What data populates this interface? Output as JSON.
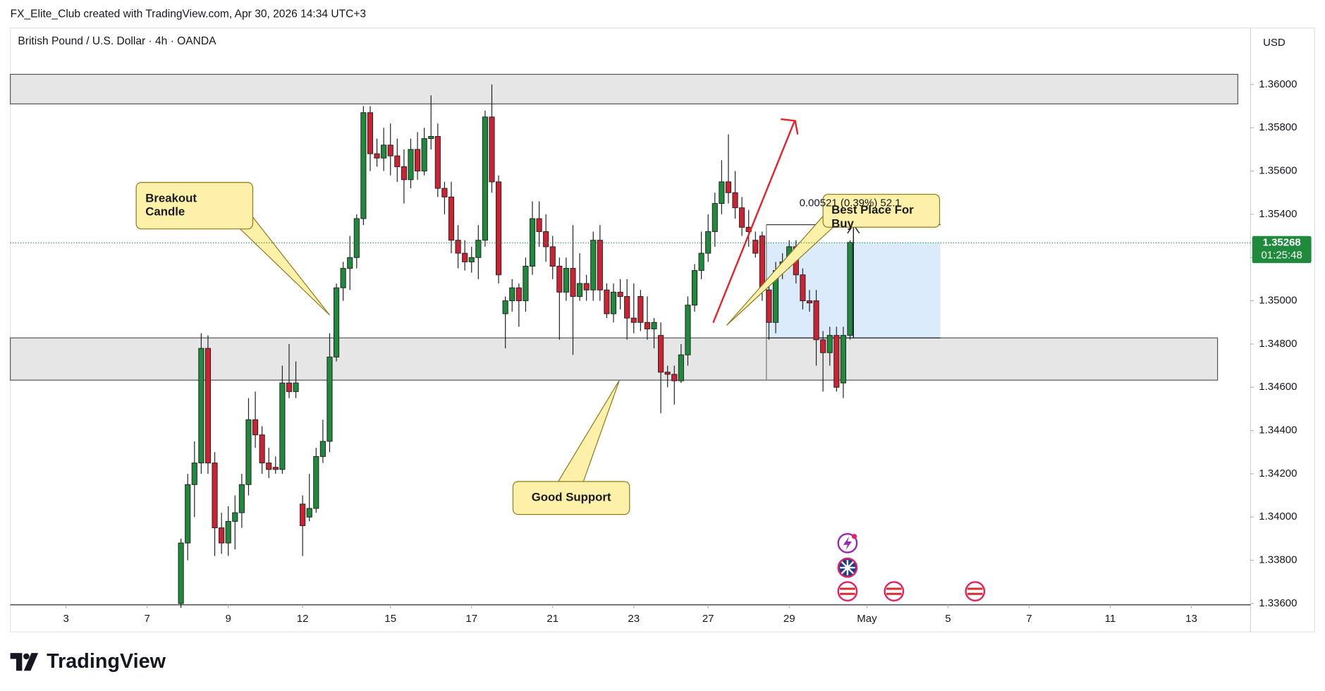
{
  "header": "FX_Elite_Club created with TradingView.com, Apr 30, 2026 14:34 UTC+3",
  "branding": "TradingView",
  "chart_data": {
    "type": "candlestick",
    "title": "British Pound / U.S. Dollar · 4h · OANDA",
    "currency": "USD",
    "up_color": "#1f8a3c",
    "down_color": "#cc2233",
    "grid": false,
    "x": [
      0,
      1,
      2,
      3,
      4,
      5,
      6,
      7,
      8,
      9,
      10,
      11,
      12,
      13,
      14,
      15,
      16,
      17,
      18,
      19,
      20,
      21,
      22,
      23,
      24,
      25,
      26,
      27,
      28,
      29,
      30,
      31,
      32,
      33,
      34,
      35,
      36,
      37,
      38,
      39,
      40,
      41,
      42,
      43,
      44,
      45,
      46,
      47,
      48,
      49,
      50,
      51,
      52,
      53,
      54,
      55,
      56,
      57,
      58,
      59,
      60,
      61,
      62,
      63,
      64,
      65,
      66,
      67,
      68,
      69,
      70,
      71,
      72,
      73,
      74,
      75,
      76,
      77,
      78,
      79,
      80,
      81,
      82,
      83,
      84,
      85,
      86,
      87,
      88,
      89,
      90,
      91,
      92,
      93,
      94,
      95,
      96,
      97,
      98,
      99
    ],
    "open": [
      1.336,
      1.3388,
      1.3415,
      1.3425,
      1.3478,
      1.3425,
      1.3395,
      1.3388,
      1.3398,
      1.3402,
      1.3415,
      1.3445,
      1.3438,
      1.3425,
      1.3423,
      1.3422,
      1.3462,
      1.3458,
      1.3406,
      1.34,
      1.3404,
      1.3428,
      1.3435,
      1.3474,
      1.3506,
      1.3515,
      1.352,
      1.3538,
      1.3587,
      1.3568,
      1.3566,
      1.3572,
      1.3567,
      1.3562,
      1.3556,
      1.357,
      1.356,
      1.3575,
      1.3576,
      1.3552,
      1.3548,
      1.3528,
      1.3522,
      1.3518,
      1.352,
      1.3528,
      1.3585,
      1.3555,
      1.3494,
      1.35,
      1.3506,
      1.35,
      1.3516,
      1.3538,
      1.3532,
      1.3525,
      1.3516,
      1.3504,
      1.3515,
      1.3502,
      1.3508,
      1.3505,
      1.3528,
      1.3505,
      1.3494,
      1.3504,
      1.3502,
      1.3492,
      1.3502,
      1.349,
      1.3487,
      1.3484,
      1.3467,
      1.3466,
      1.3463,
      1.3475,
      1.3498,
      1.3514,
      1.3522,
      1.3532,
      1.3545,
      1.3555,
      1.355,
      1.3543,
      1.3534,
      1.3528,
      1.353,
      1.3505,
      1.349,
      1.3514,
      1.3518,
      1.3525,
      1.3512,
      1.35,
      1.35,
      1.3482,
      1.3476,
      1.3484,
      1.3462,
      1.3484
    ],
    "high": [
      1.339,
      1.342,
      1.3435,
      1.3485,
      1.3484,
      1.343,
      1.3402,
      1.3405,
      1.341,
      1.342,
      1.3455,
      1.3458,
      1.3442,
      1.3432,
      1.3428,
      1.347,
      1.348,
      1.3472,
      1.341,
      1.342,
      1.3432,
      1.3445,
      1.3485,
      1.3508,
      1.3518,
      1.353,
      1.354,
      1.359,
      1.359,
      1.3575,
      1.358,
      1.3582,
      1.3575,
      1.357,
      1.3575,
      1.3578,
      1.358,
      1.3595,
      1.3582,
      1.3555,
      1.3555,
      1.3535,
      1.3528,
      1.3525,
      1.3535,
      1.3588,
      1.36,
      1.3558,
      1.3502,
      1.351,
      1.3508,
      1.352,
      1.3546,
      1.3546,
      1.354,
      1.353,
      1.352,
      1.352,
      1.3535,
      1.3522,
      1.3512,
      1.3532,
      1.3535,
      1.3508,
      1.3508,
      1.351,
      1.351,
      1.3508,
      1.3505,
      1.3502,
      1.3492,
      1.349,
      1.347,
      1.347,
      1.348,
      1.3502,
      1.3517,
      1.3532,
      1.354,
      1.355,
      1.3565,
      1.3577,
      1.356,
      1.3548,
      1.3542,
      1.3532,
      1.3532,
      1.3508,
      1.3518,
      1.3522,
      1.3528,
      1.3528,
      1.3515,
      1.3505,
      1.3505,
      1.3486,
      1.3488,
      1.3488,
      1.3488,
      1.3528
    ],
    "low": [
      1.3358,
      1.338,
      1.34,
      1.342,
      1.342,
      1.3382,
      1.3383,
      1.3382,
      1.3385,
      1.3395,
      1.341,
      1.3432,
      1.342,
      1.3418,
      1.342,
      1.342,
      1.3455,
      1.3455,
      1.3382,
      1.3398,
      1.3402,
      1.3425,
      1.343,
      1.3472,
      1.35,
      1.3505,
      1.3515,
      1.3535,
      1.356,
      1.3562,
      1.356,
      1.3558,
      1.3555,
      1.3545,
      1.3552,
      1.3556,
      1.3558,
      1.357,
      1.3548,
      1.354,
      1.3522,
      1.3515,
      1.3514,
      1.3513,
      1.351,
      1.3525,
      1.355,
      1.3508,
      1.3478,
      1.3495,
      1.3488,
      1.3495,
      1.3512,
      1.3525,
      1.3518,
      1.351,
      1.3482,
      1.35,
      1.3475,
      1.35,
      1.35,
      1.35,
      1.35,
      1.3492,
      1.349,
      1.3496,
      1.3482,
      1.3485,
      1.3486,
      1.3482,
      1.3478,
      1.3448,
      1.346,
      1.3452,
      1.3462,
      1.347,
      1.3495,
      1.351,
      1.3518,
      1.3525,
      1.354,
      1.3545,
      1.3538,
      1.353,
      1.3525,
      1.352,
      1.35,
      1.3482,
      1.3485,
      1.351,
      1.3515,
      1.3508,
      1.3496,
      1.3495,
      1.347,
      1.3458,
      1.347,
      1.3458,
      1.3455,
      1.3482
    ],
    "close": [
      1.3388,
      1.3415,
      1.3425,
      1.3478,
      1.3425,
      1.3395,
      1.3388,
      1.3398,
      1.3402,
      1.3415,
      1.3445,
      1.3438,
      1.3425,
      1.3422,
      1.3422,
      1.3462,
      1.3458,
      1.3462,
      1.3396,
      1.3404,
      1.3428,
      1.3435,
      1.3474,
      1.3506,
      1.3515,
      1.352,
      1.3538,
      1.3587,
      1.3568,
      1.3566,
      1.3572,
      1.3567,
      1.3562,
      1.3556,
      1.357,
      1.356,
      1.3575,
      1.3576,
      1.3552,
      1.3548,
      1.3528,
      1.3522,
      1.3518,
      1.352,
      1.3528,
      1.3585,
      1.3555,
      1.3512,
      1.35,
      1.3506,
      1.35,
      1.3516,
      1.3538,
      1.3532,
      1.3525,
      1.3516,
      1.3504,
      1.3515,
      1.3502,
      1.3508,
      1.3505,
      1.3528,
      1.3505,
      1.3494,
      1.3504,
      1.3502,
      1.3492,
      1.349,
      1.349,
      1.3487,
      1.349,
      1.3467,
      1.3466,
      1.3463,
      1.3475,
      1.3498,
      1.3514,
      1.3522,
      1.3532,
      1.3545,
      1.3555,
      1.355,
      1.3543,
      1.3534,
      1.3532,
      1.3522,
      1.3505,
      1.349,
      1.3514,
      1.3518,
      1.3525,
      1.3512,
      1.35,
      1.3499,
      1.3482,
      1.3476,
      1.3484,
      1.346,
      1.3484,
      1.3527
    ],
    "xlim": [
      -25.25,
      158.25
    ],
    "xticks": [
      {
        "value": -17,
        "label": "3"
      },
      {
        "value": -5,
        "label": "7"
      },
      {
        "value": 7,
        "label": "9"
      },
      {
        "value": 18,
        "label": "12"
      },
      {
        "value": 31,
        "label": "15"
      },
      {
        "value": 43,
        "label": "17"
      },
      {
        "value": 55,
        "label": "21"
      },
      {
        "value": 67,
        "label": "23"
      },
      {
        "value": 78,
        "label": "27"
      },
      {
        "value": 90,
        "label": "29"
      },
      {
        "value": 101.5,
        "label": "May"
      },
      {
        "value": 113.5,
        "label": "5"
      },
      {
        "value": 125.5,
        "label": "7"
      },
      {
        "value": 137.5,
        "label": "11"
      },
      {
        "value": 149.5,
        "label": "13"
      }
    ],
    "ylim": [
      1.33594,
      1.36262
    ],
    "yticks": [
      {
        "value": 1.336,
        "label": "1.33600"
      },
      {
        "value": 1.338,
        "label": "1.33800"
      },
      {
        "value": 1.34,
        "label": "1.34000"
      },
      {
        "value": 1.342,
        "label": "1.34200"
      },
      {
        "value": 1.344,
        "label": "1.34400"
      },
      {
        "value": 1.346,
        "label": "1.34600"
      },
      {
        "value": 1.348,
        "label": "1.34800"
      },
      {
        "value": 1.35,
        "label": "1.35000"
      },
      {
        "value": 1.352,
        "label": "1.35200"
      },
      {
        "value": 1.354,
        "label": "1.35400"
      },
      {
        "value": 1.356,
        "label": "1.35600"
      },
      {
        "value": 1.358,
        "label": "1.35800"
      },
      {
        "value": 1.36,
        "label": "1.36000"
      }
    ],
    "last_price": {
      "value": 1.35268,
      "label": "1.35268"
    },
    "countdown": "01:25:48",
    "annotations": [
      "Breakout Candle",
      "Good Support",
      "Best Place For Buy"
    ],
    "measurement": "0.00521 (0.39%) 52.1"
  }
}
